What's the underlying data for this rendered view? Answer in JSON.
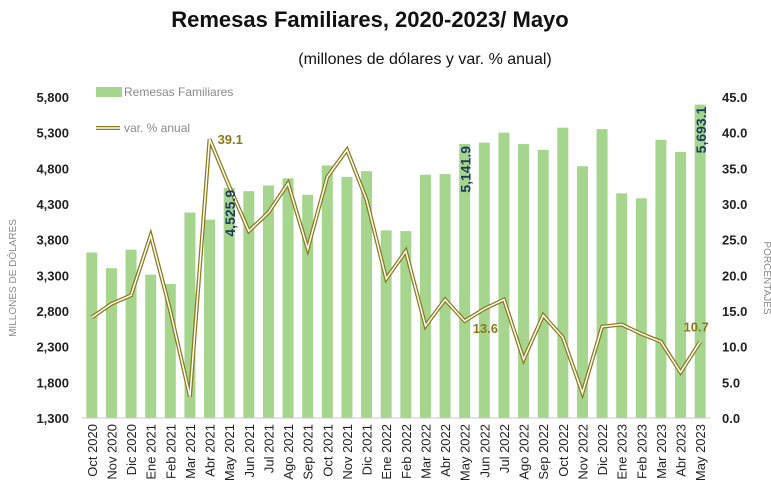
{
  "chart_data": {
    "type": "bar",
    "title": "Remesas Familiares, 2020-2023/ Mayo",
    "subtitle": "(millones de dólares y var. % anual)",
    "ylabel": "MILLONES DE DÓLARES",
    "y2label": "PORCENTAJES",
    "ylim": [
      1300,
      5800
    ],
    "yticks": [
      "1,300",
      "1,800",
      "2,300",
      "2,800",
      "3,300",
      "3,800",
      "4,300",
      "4,800",
      "5,300",
      "5,800"
    ],
    "y2lim": [
      0,
      45
    ],
    "y2ticks": [
      "0.0",
      "5.0",
      "10.0",
      "15.0",
      "20.0",
      "25.0",
      "30.0",
      "35.0",
      "40.0",
      "45.0"
    ],
    "legend_placement": "top-left",
    "grid": false,
    "categories": [
      "Oct 2020",
      "Nov 2020",
      "Dic 2020",
      "Ene 2021",
      "Feb 2021",
      "Mar 2021",
      "Abr 2021",
      "May 2021",
      "Jun 2021",
      "Jul 2021",
      "Ago 2021",
      "Sep 2021",
      "Oct 2021",
      "Nov 2021",
      "Dic 2021",
      "Ene 2022",
      "Feb 2022",
      "Mar 2022",
      "Abr 2022",
      "May 2022",
      "Jun 2022",
      "Jul 2022",
      "Ago 2022",
      "Sep 2022",
      "Oct 2022",
      "Nov 2022",
      "Dic 2022",
      "Ene 2023",
      "Feb 2023",
      "Mar 2023",
      "Abr 2023",
      "May 2023"
    ],
    "series": [
      {
        "name": "Remesas Familiares",
        "kind": "bar",
        "axis": "left",
        "color": "#a6d58e",
        "values": [
          3620,
          3400,
          3660,
          3310,
          3180,
          4180,
          4080,
          4525.9,
          4480,
          4560,
          4660,
          4430,
          4840,
          4680,
          4760,
          3930,
          3920,
          4710,
          4720,
          5141.9,
          5160,
          5300,
          5140,
          5060,
          5370,
          4830,
          5350,
          4450,
          4380,
          5200,
          5030,
          5693.1
        ]
      },
      {
        "name": "var. % anual",
        "kind": "line",
        "axis": "right",
        "color": "#8a7a1a",
        "values": [
          14.1,
          16.0,
          17.2,
          25.6,
          15.0,
          3.0,
          39.1,
          32.5,
          26.2,
          28.8,
          32.9,
          23.7,
          33.8,
          37.6,
          30.6,
          19.5,
          23.4,
          12.9,
          16.6,
          13.6,
          15.3,
          16.6,
          8.2,
          14.4,
          11.3,
          3.5,
          12.8,
          13.1,
          11.8,
          10.7,
          6.4,
          10.7
        ]
      }
    ],
    "data_labels": [
      {
        "series": 0,
        "index": 7,
        "text": "4,525.9"
      },
      {
        "series": 0,
        "index": 19,
        "text": "5,141.9"
      },
      {
        "series": 0,
        "index": 31,
        "text": "5,693.1"
      },
      {
        "series": 1,
        "index": 6,
        "text": "39.1"
      },
      {
        "series": 1,
        "index": 19,
        "text": "13.6"
      },
      {
        "series": 1,
        "index": 31,
        "text": "10.7"
      }
    ]
  }
}
